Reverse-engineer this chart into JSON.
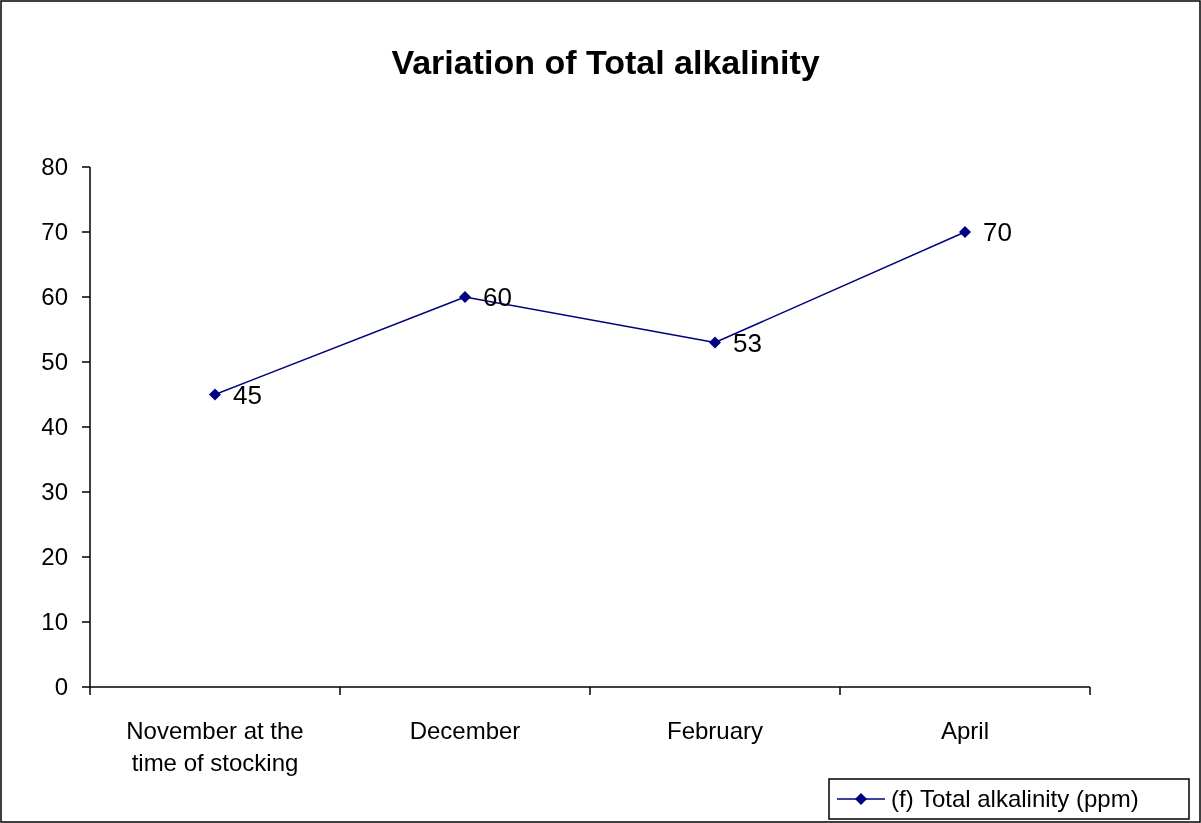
{
  "chart_data": {
    "type": "line",
    "title": "Variation of Total alkalinity",
    "categories": [
      "November at the time of stocking",
      "December",
      "February",
      "April"
    ],
    "series": [
      {
        "name": "(f) Total alkalinity (ppm)",
        "color": "#000080",
        "values": [
          45,
          60,
          53,
          70
        ]
      }
    ],
    "ylim": [
      0,
      80
    ],
    "yticks": [
      0,
      10,
      20,
      30,
      40,
      50,
      60,
      70,
      80
    ],
    "grid": false,
    "legend": "bottom right",
    "marker": "diamond",
    "line_style": "solid",
    "data_labels": true
  }
}
